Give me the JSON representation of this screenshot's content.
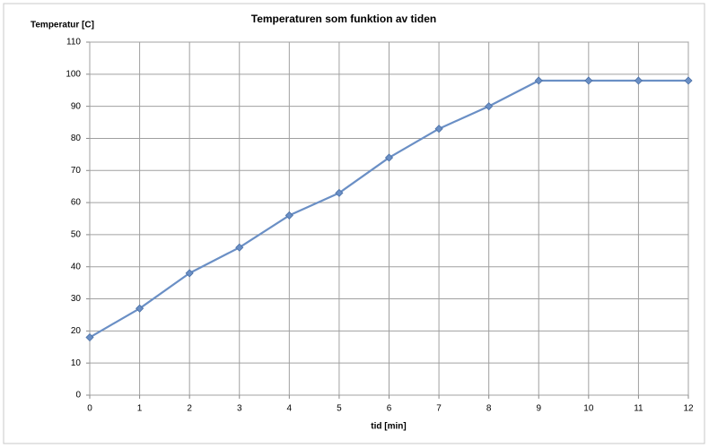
{
  "chart_data": {
    "type": "line",
    "title": "Temperaturen som funktion av tiden",
    "x_label": "tid [min]",
    "y_label": "Temperatur [C]",
    "x": [
      0,
      1,
      2,
      3,
      4,
      5,
      6,
      7,
      8,
      9,
      10,
      11,
      12
    ],
    "series": [
      {
        "color": "#6a8fc5",
        "values": [
          18,
          27,
          38,
          46,
          56,
          63,
          74,
          83,
          90,
          98,
          98,
          98,
          98
        ]
      }
    ],
    "xlim": [
      0,
      12
    ],
    "xticks": [
      0,
      1,
      2,
      3,
      4,
      5,
      6,
      7,
      8,
      9,
      10,
      11,
      12
    ],
    "ylim": [
      0,
      110
    ],
    "yticks": [
      0,
      10,
      20,
      30,
      40,
      50,
      60,
      70,
      80,
      90,
      100,
      110
    ],
    "grid": true
  }
}
